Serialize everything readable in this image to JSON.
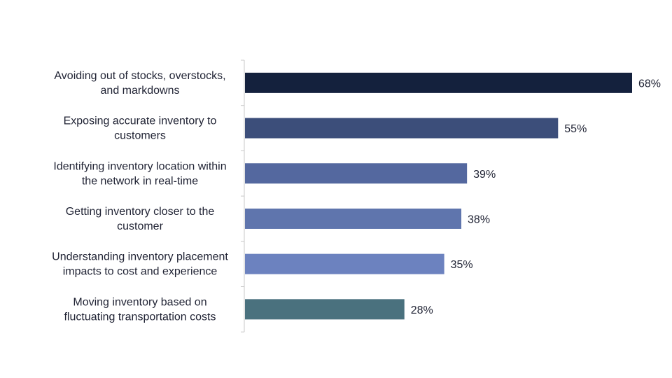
{
  "chart_data": {
    "type": "bar",
    "orientation": "horizontal",
    "categories": [
      [
        "Avoiding out of stocks, overstocks,",
        "and markdowns"
      ],
      [
        "Exposing accurate inventory to",
        "customers"
      ],
      [
        "Identifying inventory location within",
        "the network in real-time"
      ],
      [
        "Getting inventory closer to the",
        "customer"
      ],
      [
        "Understanding inventory placement",
        "impacts to cost and experience"
      ],
      [
        "Moving inventory based on",
        "fluctuating transportation costs"
      ]
    ],
    "values": [
      68,
      55,
      39,
      38,
      35,
      28
    ],
    "value_labels": [
      "68%",
      "55%",
      "39%",
      "38%",
      "35%",
      "28%"
    ],
    "colors": [
      "#14213d",
      "#3c4e7a",
      "#54689f",
      "#5f75ad",
      "#6c82bf",
      "#4a717e"
    ],
    "title": "",
    "xlabel": "",
    "ylabel": "",
    "xlim": [
      0,
      68
    ],
    "grid": false,
    "legend": "none"
  }
}
